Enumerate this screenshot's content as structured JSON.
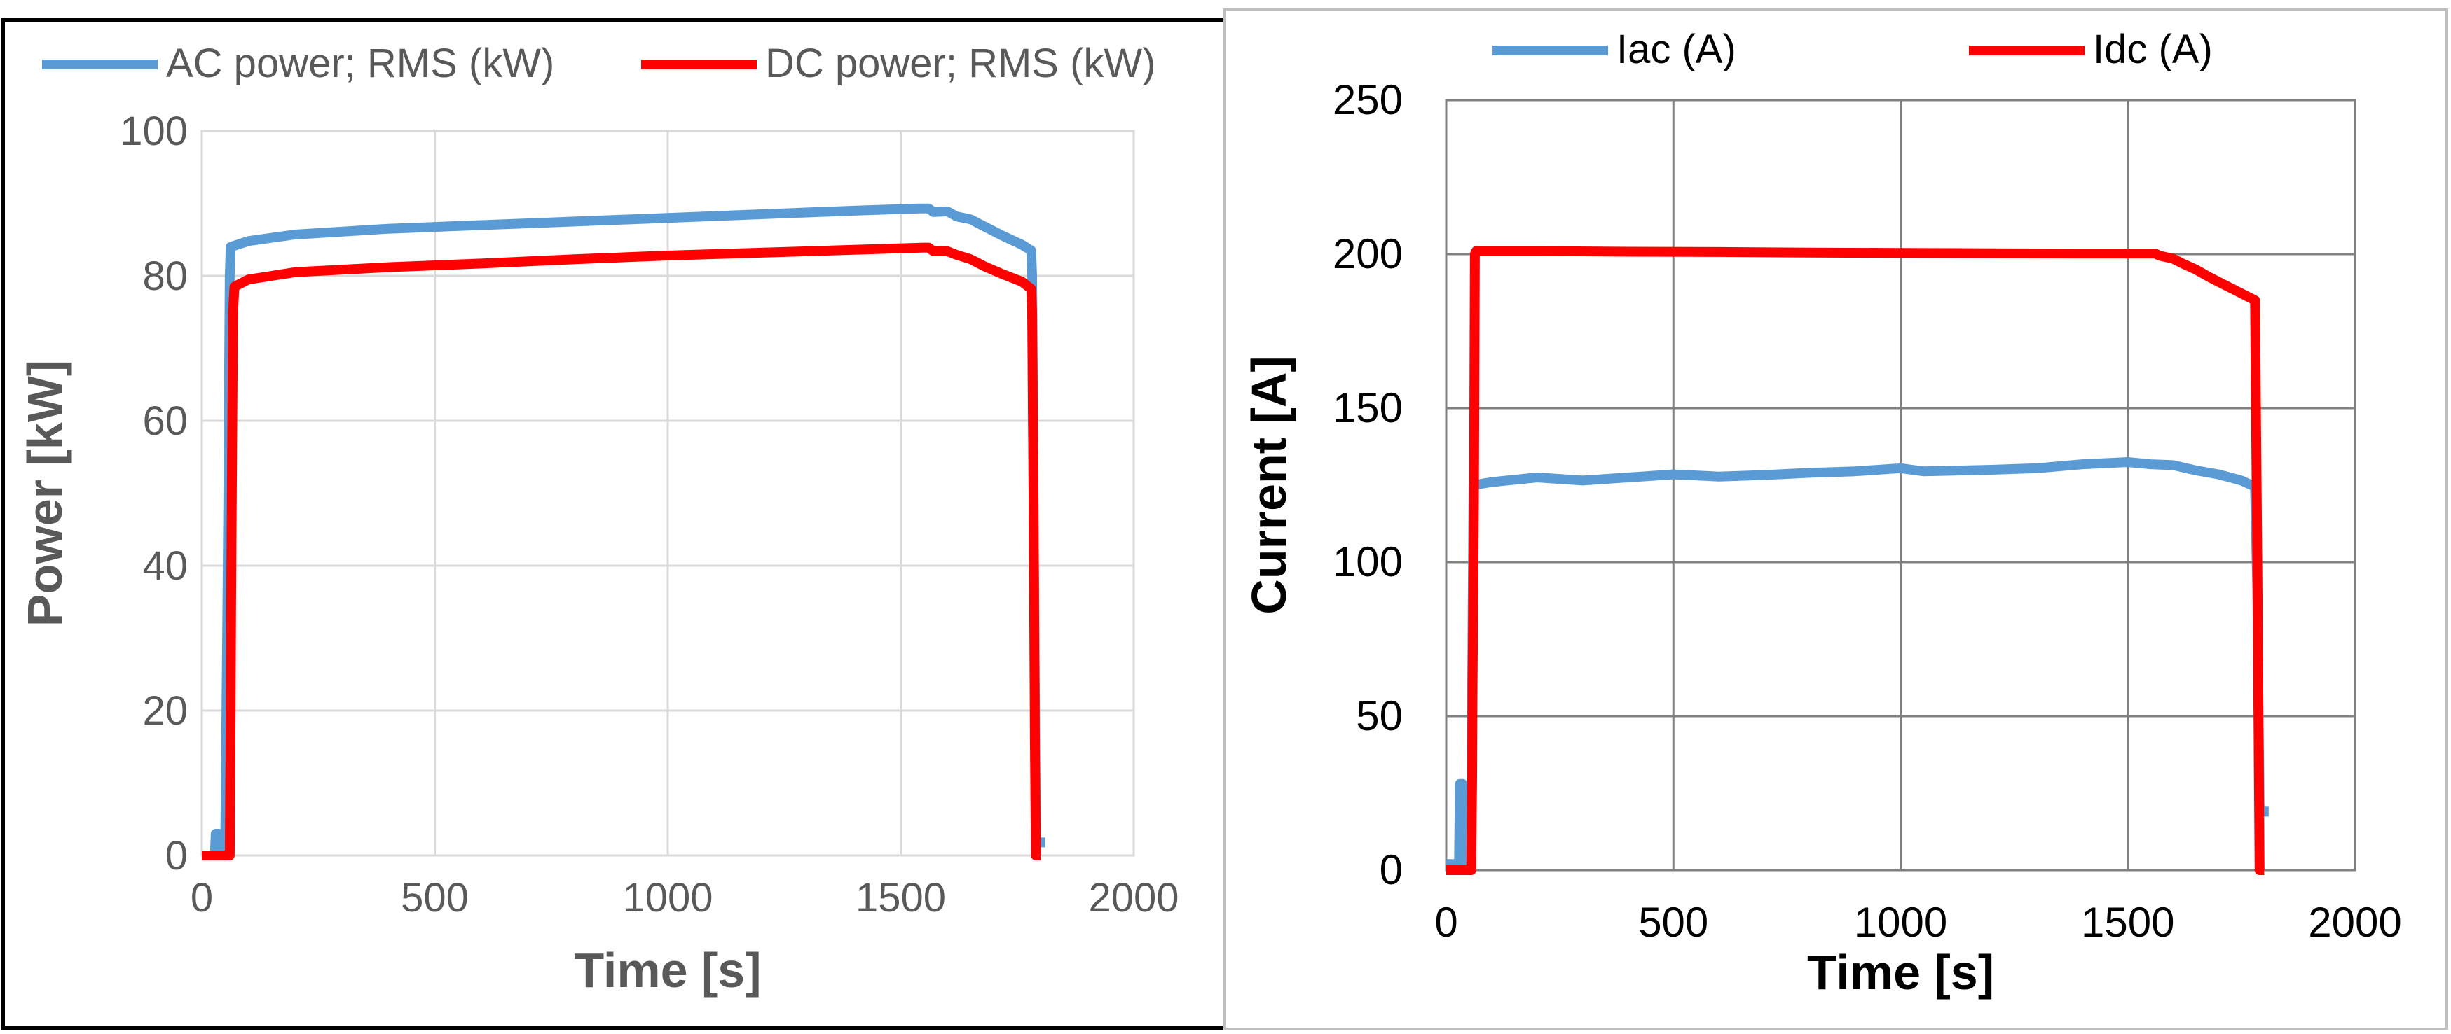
{
  "charts": [
    {
      "type": "line",
      "title": "",
      "xlabel": "Time [s]",
      "ylabel": "Power [kW]",
      "xlim": [
        0,
        2000
      ],
      "ylim": [
        0,
        100
      ],
      "xticks": [
        0,
        500,
        1000,
        1500,
        2000
      ],
      "yticks": [
        0,
        20,
        40,
        60,
        80,
        100
      ],
      "grid": true,
      "legend_position": "top",
      "series": [
        {
          "name": "AC power; RMS (kW)",
          "color": "#5b9bd5",
          "points": [
            [
              0,
              0
            ],
            [
              28,
              0
            ],
            [
              30,
              3
            ],
            [
              36,
              3
            ],
            [
              38,
              0
            ],
            [
              50,
              0
            ],
            [
              55,
              35
            ],
            [
              57,
              50
            ],
            [
              58,
              62
            ],
            [
              60,
              80
            ],
            [
              62,
              84
            ],
            [
              100,
              84.8
            ],
            [
              200,
              85.7
            ],
            [
              400,
              86.5
            ],
            [
              600,
              87
            ],
            [
              800,
              87.5
            ],
            [
              1000,
              88
            ],
            [
              1200,
              88.5
            ],
            [
              1400,
              89
            ],
            [
              1540,
              89.3
            ],
            [
              1560,
              89.3
            ],
            [
              1570,
              88.8
            ],
            [
              1600,
              88.9
            ],
            [
              1620,
              88.2
            ],
            [
              1650,
              87.8
            ],
            [
              1680,
              86.8
            ],
            [
              1720,
              85.5
            ],
            [
              1760,
              84.3
            ],
            [
              1780,
              83.5
            ],
            [
              1782,
              80
            ],
            [
              1785,
              50
            ],
            [
              1790,
              2
            ],
            [
              1800,
              1.8
            ],
            [
              1810,
              1.8
            ]
          ]
        },
        {
          "name": "DC power; RMS (kW)",
          "color": "#ff0000",
          "points": [
            [
              0,
              0
            ],
            [
              60,
              0
            ],
            [
              62,
              20
            ],
            [
              63,
              35
            ],
            [
              65,
              55
            ],
            [
              67,
              75
            ],
            [
              70,
              78.5
            ],
            [
              100,
              79.5
            ],
            [
              200,
              80.5
            ],
            [
              400,
              81.2
            ],
            [
              600,
              81.7
            ],
            [
              800,
              82.3
            ],
            [
              1000,
              82.8
            ],
            [
              1200,
              83.2
            ],
            [
              1400,
              83.6
            ],
            [
              1550,
              83.9
            ],
            [
              1560,
              83.9
            ],
            [
              1570,
              83.4
            ],
            [
              1600,
              83.4
            ],
            [
              1620,
              82.9
            ],
            [
              1650,
              82.3
            ],
            [
              1680,
              81.3
            ],
            [
              1720,
              80.2
            ],
            [
              1760,
              79.2
            ],
            [
              1780,
              78.2
            ],
            [
              1782,
              75
            ],
            [
              1785,
              50
            ],
            [
              1788,
              15
            ],
            [
              1790,
              0
            ],
            [
              1800,
              0
            ]
          ]
        }
      ]
    },
    {
      "type": "line",
      "title": "",
      "xlabel": "Time [s]",
      "ylabel": "Current [A]",
      "xlim": [
        0,
        2000
      ],
      "ylim": [
        0,
        250
      ],
      "xticks": [
        0,
        500,
        1000,
        1500,
        2000
      ],
      "yticks": [
        0,
        50,
        100,
        150,
        200,
        250
      ],
      "grid": true,
      "legend_position": "top",
      "series": [
        {
          "name": "Iac (A)",
          "color": "#5b9bd5",
          "points": [
            [
              0,
              2
            ],
            [
              28,
              2
            ],
            [
              30,
              28
            ],
            [
              36,
              28
            ],
            [
              38,
              0
            ],
            [
              55,
              0
            ],
            [
              57,
              60
            ],
            [
              60,
              125
            ],
            [
              100,
              126
            ],
            [
              200,
              127.5
            ],
            [
              300,
              126.5
            ],
            [
              400,
              127.5
            ],
            [
              500,
              128.5
            ],
            [
              600,
              127.8
            ],
            [
              700,
              128.3
            ],
            [
              800,
              129
            ],
            [
              900,
              129.5
            ],
            [
              1000,
              130.5
            ],
            [
              1050,
              129.5
            ],
            [
              1200,
              130
            ],
            [
              1300,
              130.5
            ],
            [
              1400,
              131.8
            ],
            [
              1500,
              132.5
            ],
            [
              1550,
              131.8
            ],
            [
              1600,
              131.5
            ],
            [
              1650,
              129.8
            ],
            [
              1700,
              128.5
            ],
            [
              1750,
              126.5
            ],
            [
              1780,
              124.5
            ],
            [
              1785,
              90
            ],
            [
              1790,
              20
            ],
            [
              1800,
              19
            ],
            [
              1810,
              19
            ]
          ]
        },
        {
          "name": "Idc (A)",
          "color": "#ff0000",
          "points": [
            [
              0,
              0
            ],
            [
              55,
              0
            ],
            [
              57,
              30
            ],
            [
              58,
              60
            ],
            [
              61,
              120
            ],
            [
              63,
              200
            ],
            [
              66,
              201
            ],
            [
              200,
              201
            ],
            [
              400,
              200.8
            ],
            [
              600,
              200.7
            ],
            [
              800,
              200.5
            ],
            [
              1000,
              200.4
            ],
            [
              1200,
              200.3
            ],
            [
              1400,
              200.2
            ],
            [
              1560,
              200.2
            ],
            [
              1570,
              199.5
            ],
            [
              1600,
              198.5
            ],
            [
              1620,
              197
            ],
            [
              1650,
              195
            ],
            [
              1680,
              192.5
            ],
            [
              1720,
              189.5
            ],
            [
              1760,
              186.5
            ],
            [
              1780,
              185
            ],
            [
              1782,
              150
            ],
            [
              1785,
              100
            ],
            [
              1788,
              40
            ],
            [
              1790,
              0
            ],
            [
              1800,
              0
            ]
          ]
        }
      ]
    }
  ]
}
